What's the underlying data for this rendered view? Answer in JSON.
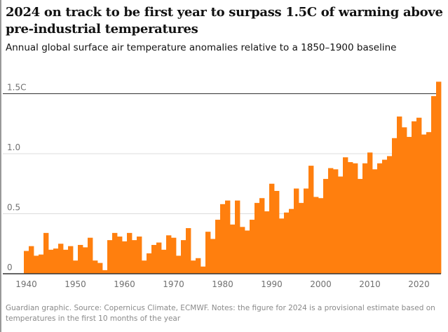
{
  "title": "2024 on track to be first year to surpass 1.5C of warming above pre-industrial temperatures",
  "subtitle": "Annual global surface air temperature anomalies relative to a 1850–1900 baseline",
  "footer": "Guardian graphic. Source: Copernicus Climate, ECMWF. Notes: the figure for 2024 is a provisional estimate based on temperatures in the first 10 months of the year",
  "chart_data": {
    "type": "bar",
    "color": "#ff7f0e",
    "xlim": [
      1940,
      2024
    ],
    "ylim": [
      0,
      1.6
    ],
    "grid": true,
    "y_ticks": [
      {
        "v": 0,
        "label": "0"
      },
      {
        "v": 0.5,
        "label": "0.5"
      },
      {
        "v": 1.0,
        "label": "1.0"
      },
      {
        "v": 1.5,
        "label": "1.5C"
      }
    ],
    "x_ticks": [
      "1940",
      "1950",
      "1960",
      "1970",
      "1980",
      "1990",
      "2000",
      "2010",
      "2020"
    ],
    "reference_line": 1.5,
    "categories": [
      1940,
      1941,
      1942,
      1943,
      1944,
      1945,
      1946,
      1947,
      1948,
      1949,
      1950,
      1951,
      1952,
      1953,
      1954,
      1955,
      1956,
      1957,
      1958,
      1959,
      1960,
      1961,
      1962,
      1963,
      1964,
      1965,
      1966,
      1967,
      1968,
      1969,
      1970,
      1971,
      1972,
      1973,
      1974,
      1975,
      1976,
      1977,
      1978,
      1979,
      1980,
      1981,
      1982,
      1983,
      1984,
      1985,
      1986,
      1987,
      1988,
      1989,
      1990,
      1991,
      1992,
      1993,
      1994,
      1995,
      1996,
      1997,
      1998,
      1999,
      2000,
      2001,
      2002,
      2003,
      2004,
      2005,
      2006,
      2007,
      2008,
      2009,
      2010,
      2011,
      2012,
      2013,
      2014,
      2015,
      2016,
      2017,
      2018,
      2019,
      2020,
      2021,
      2022,
      2023,
      2024
    ],
    "values": [
      0.19,
      0.23,
      0.15,
      0.16,
      0.34,
      0.2,
      0.21,
      0.25,
      0.2,
      0.23,
      0.11,
      0.24,
      0.22,
      0.3,
      0.11,
      0.09,
      0.03,
      0.28,
      0.34,
      0.31,
      0.27,
      0.34,
      0.28,
      0.31,
      0.11,
      0.17,
      0.24,
      0.26,
      0.2,
      0.32,
      0.3,
      0.15,
      0.28,
      0.38,
      0.11,
      0.13,
      0.06,
      0.35,
      0.29,
      0.45,
      0.58,
      0.61,
      0.41,
      0.61,
      0.39,
      0.36,
      0.45,
      0.59,
      0.63,
      0.52,
      0.75,
      0.69,
      0.46,
      0.51,
      0.54,
      0.71,
      0.59,
      0.71,
      0.9,
      0.64,
      0.63,
      0.79,
      0.88,
      0.87,
      0.81,
      0.97,
      0.93,
      0.92,
      0.79,
      0.92,
      1.01,
      0.87,
      0.92,
      0.95,
      0.98,
      1.13,
      1.31,
      1.22,
      1.14,
      1.27,
      1.3,
      1.16,
      1.18,
      1.48,
      1.6
    ]
  }
}
